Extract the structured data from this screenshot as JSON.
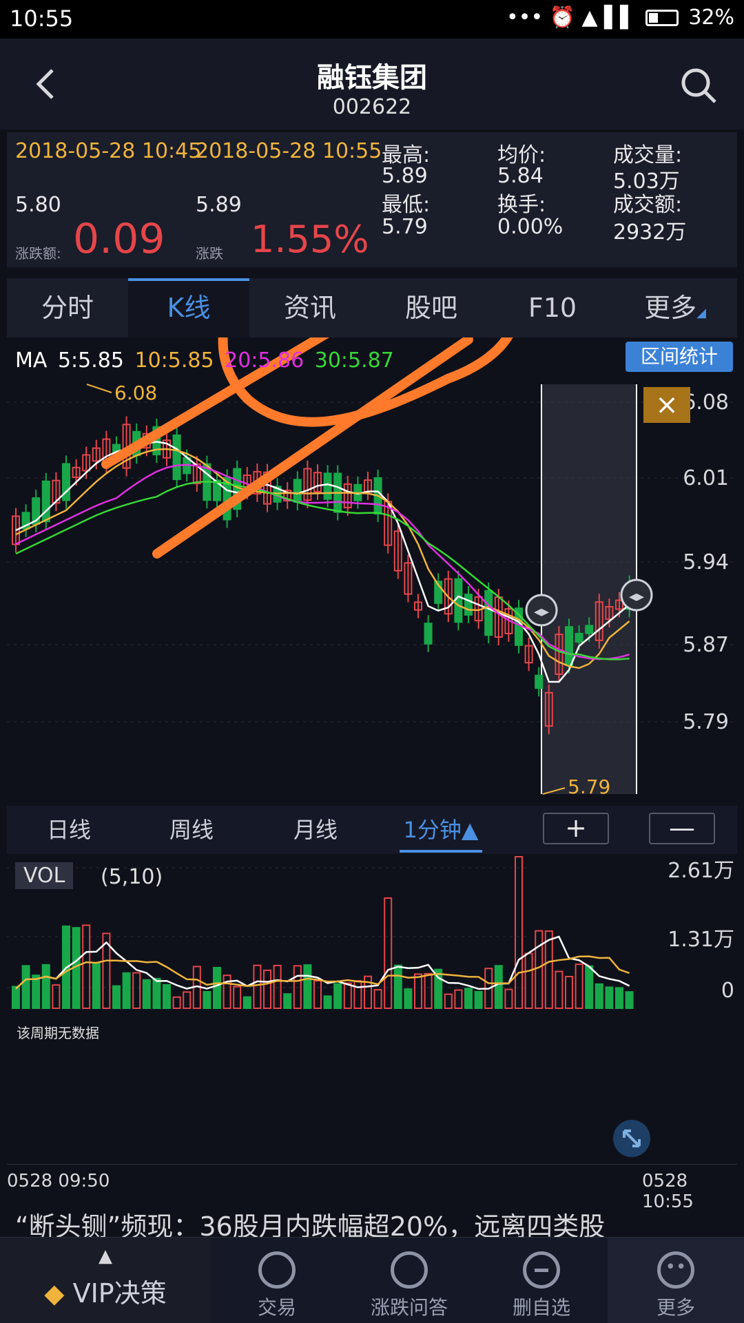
{
  "status": {
    "time": "10:55",
    "icons": "••• ⏰ ▲ ▌▌",
    "battery": "32%"
  },
  "header": {
    "title": "融钰集团",
    "code": "002622",
    "back_icon": "back-chevron-icon",
    "search_icon": "search-icon"
  },
  "quote": {
    "time_start": "2018-05-28 10:45",
    "time_end": "2018-05-28 10:55",
    "price_start": "5.80",
    "price_end": "5.89",
    "change_label": "涨跌额:",
    "change_value": "0.09",
    "pct_label": "涨跌",
    "pct_value": "1.55%",
    "high_label": "最高:",
    "high_value": "5.89",
    "low_label": "最低:",
    "low_value": "5.79",
    "avg_label": "均价:",
    "avg_value": "5.84",
    "turnover_label": "换手:",
    "turnover_value": "0.00%",
    "volume_label": "成交量:",
    "volume_value": "5.03万",
    "amount_label": "成交额:",
    "amount_value": "2932万"
  },
  "tabs": [
    {
      "label": "分时"
    },
    {
      "label": "K线"
    },
    {
      "label": "资讯"
    },
    {
      "label": "股吧"
    },
    {
      "label": "F10"
    },
    {
      "label": "更多"
    }
  ],
  "chart": {
    "ma_title": "MA",
    "ma5": "5:5.85",
    "ma10": "10:5.85",
    "ma20": "20:5.86",
    "ma30": "30:5.87",
    "range_btn": "区间统计",
    "close_icon": "×",
    "y_ticks": [
      "6.08",
      "6.01",
      "5.94",
      "5.87",
      "5.79"
    ],
    "high_mark": "6.08",
    "low_mark": "5.79",
    "colors": {
      "up": "#e5464a",
      "down": "#18a84a",
      "ma5": "#ffffff",
      "ma10": "#f0b43c",
      "ma20": "#e030e0",
      "ma30": "#36d836",
      "annotation": "#ff7a2a"
    }
  },
  "periods": [
    {
      "label": "日线"
    },
    {
      "label": "周线"
    },
    {
      "label": "月线"
    },
    {
      "label": "1分钟▲"
    }
  ],
  "zoom": {
    "plus": "+",
    "minus": "—"
  },
  "volume": {
    "label": "VOL",
    "params": "(5,10)",
    "y_ticks": [
      "2.61万",
      "1.31万",
      "0"
    ],
    "no_data": "该周期无数据"
  },
  "time_axis": {
    "start": "0528 09:50",
    "end": "0528 10:55"
  },
  "news": "“断头铡”频现：36股月内跌幅超20%，远离四类股",
  "bottom_nav": [
    {
      "label": "VIP决策"
    },
    {
      "label": "交易"
    },
    {
      "label": "涨跌问答"
    },
    {
      "label": "删自选"
    },
    {
      "label": "更多"
    }
  ]
}
